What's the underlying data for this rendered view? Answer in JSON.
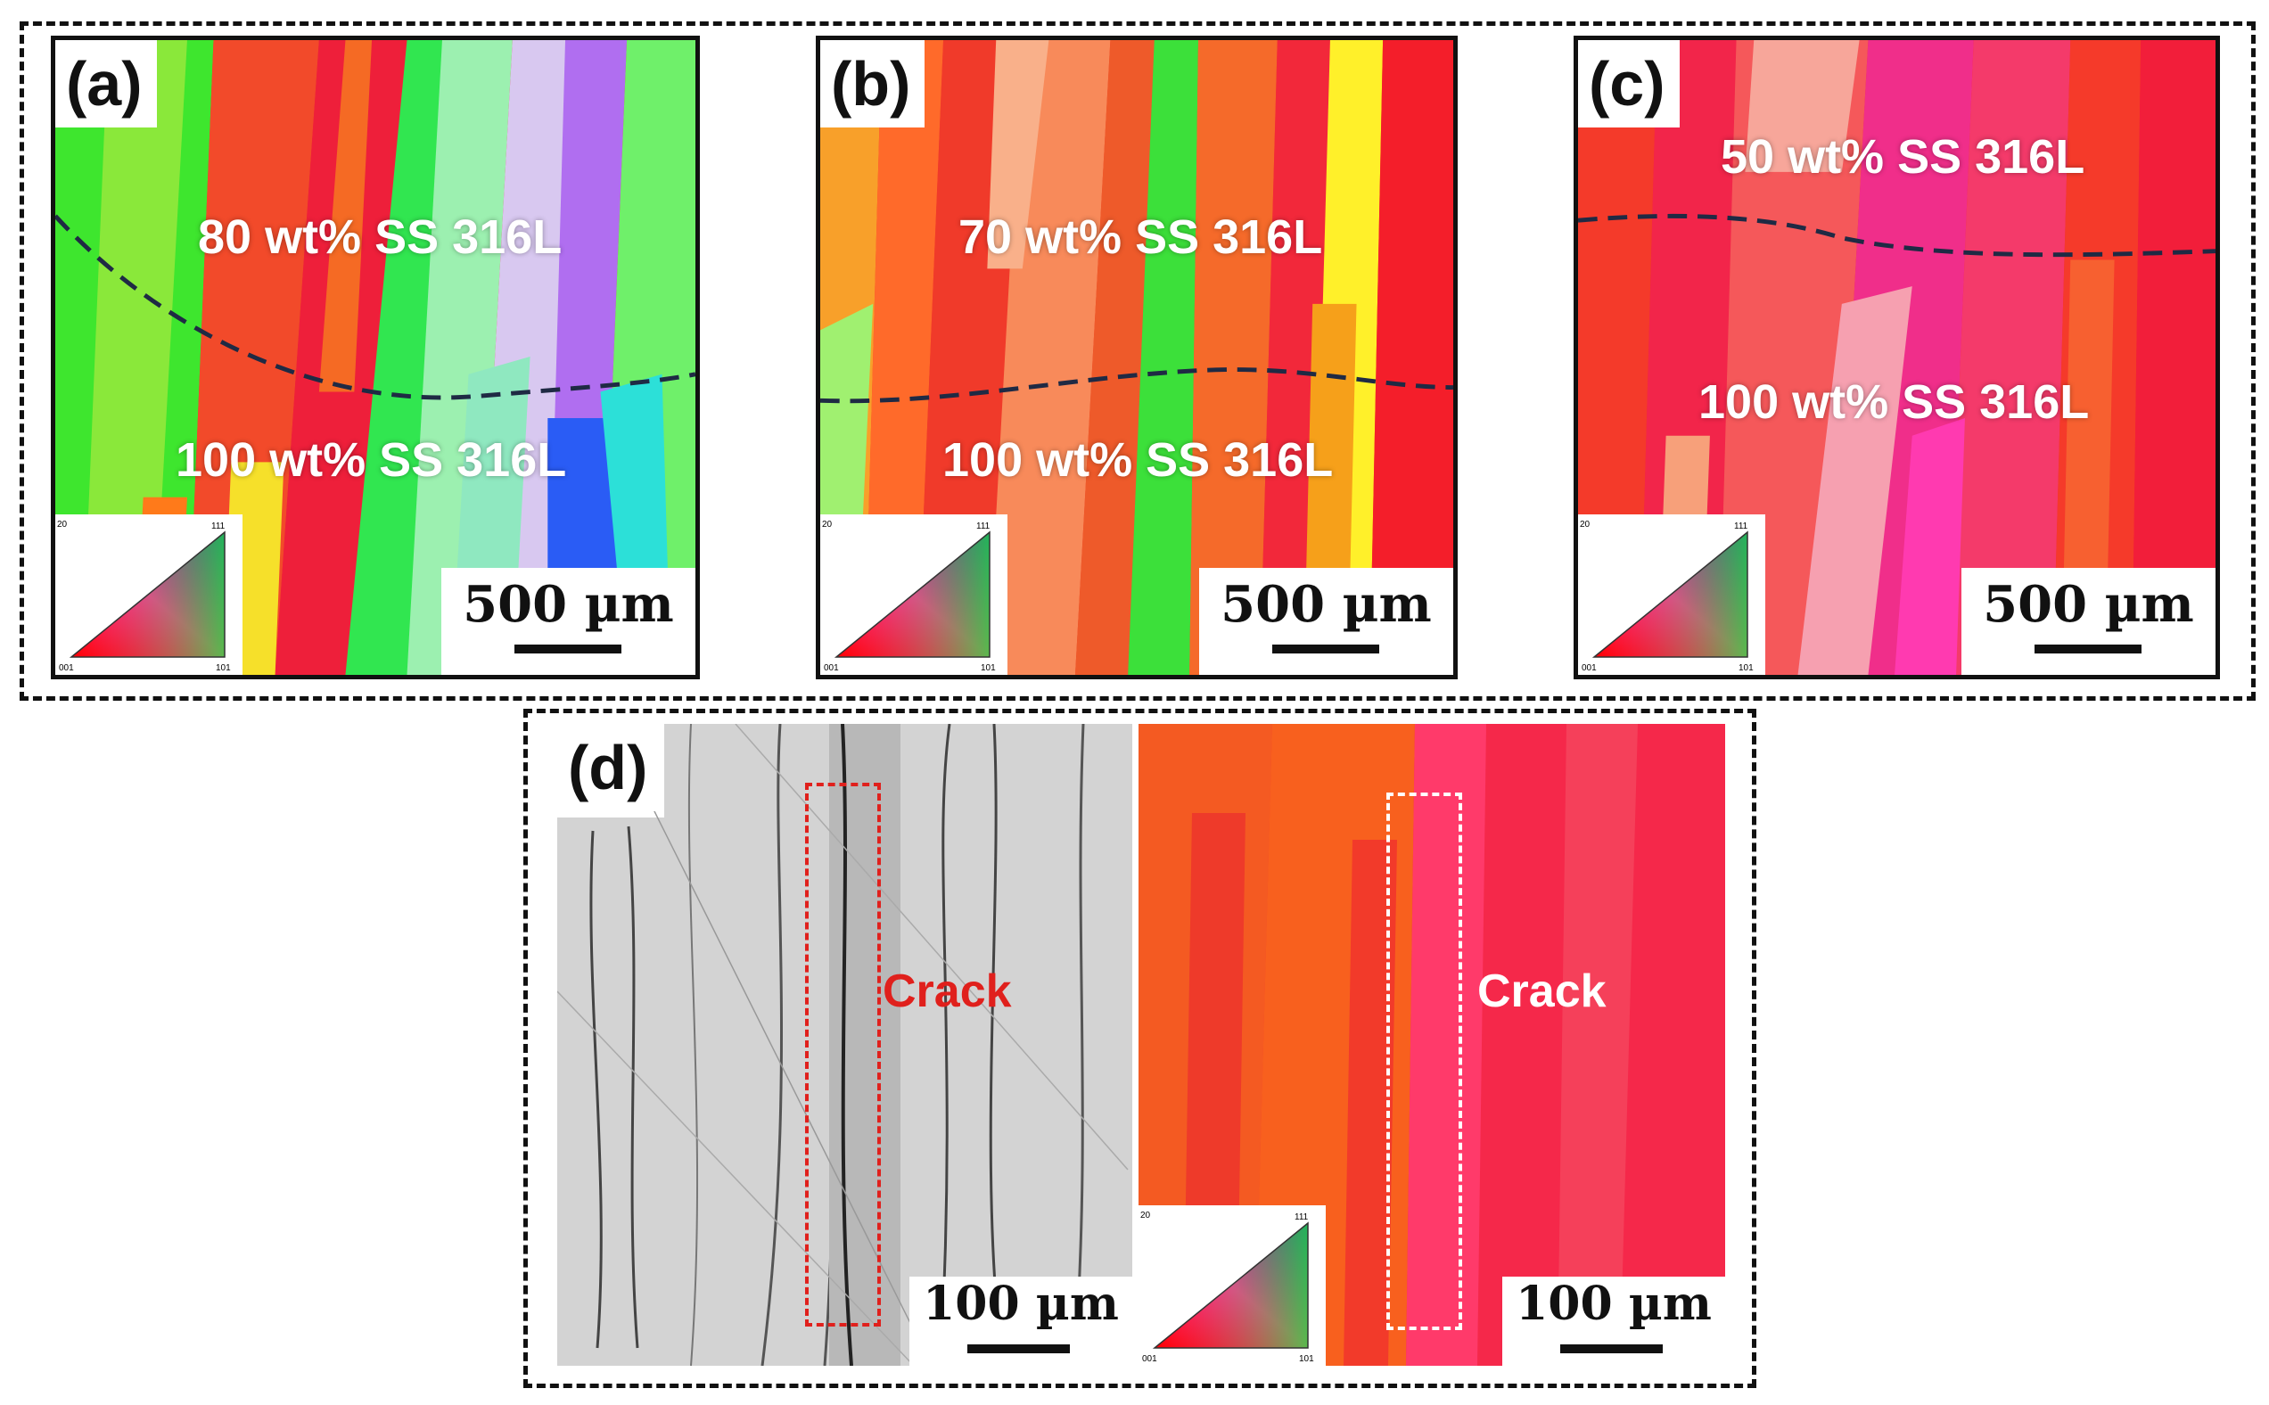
{
  "figure": {
    "panels": [
      {
        "label": "(a)",
        "top_text": "80 wt% SS 316L",
        "bottom_text": "100 wt% SS 316L",
        "scale": "500 µm"
      },
      {
        "label": "(b)",
        "top_text": "70 wt% SS 316L",
        "bottom_text": "100 wt% SS 316L",
        "scale": "500 µm"
      },
      {
        "label": "(c)",
        "top_text": "50 wt% SS 316L",
        "bottom_text": "100 wt% SS 316L",
        "scale": "500 µm"
      }
    ],
    "panel_d": {
      "label": "(d)",
      "left": {
        "crack_label": "Crack",
        "scale": "100 µm"
      },
      "right": {
        "crack_label": "Crack",
        "scale": "100 µm"
      }
    },
    "ipf_legend": {
      "top": "111",
      "left_top": "20",
      "bottom_left": "001",
      "bottom_right": "101"
    },
    "colors": {
      "crack_left": "#e0201c",
      "crack_right": "#ffffff",
      "boundary": "#1f2a44"
    }
  }
}
